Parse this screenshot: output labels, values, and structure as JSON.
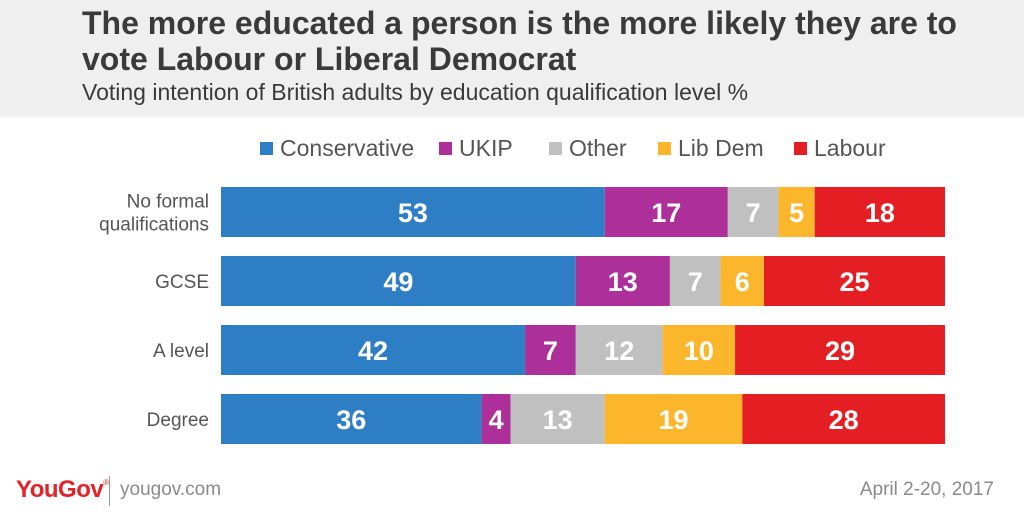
{
  "header": {
    "title": "The more educated a person is the more likely they are to vote Labour or Liberal Democrat",
    "subtitle": "Voting intention of British adults by education qualification level %"
  },
  "legend": [
    {
      "label": "Conservative",
      "color": "#2d7ec4"
    },
    {
      "label": "UKIP",
      "color": "#ad2f99"
    },
    {
      "label": "Other",
      "color": "#c0c0c0"
    },
    {
      "label": "Lib Dem",
      "color": "#fbb62c"
    },
    {
      "label": "Labour",
      "color": "#e41e23"
    }
  ],
  "chart_data": {
    "type": "bar",
    "orientation": "horizontal",
    "stacked": true,
    "title": "The more educated a person is the more likely they are to vote Labour or Liberal Democrat",
    "subtitle": "Voting intention of British adults by education qualification level %",
    "xlabel": "",
    "ylabel": "",
    "xlim": [
      0,
      100
    ],
    "categories": [
      "No formal qualifications",
      "GCSE",
      "A level",
      "Degree"
    ],
    "category_lines": [
      [
        "No formal",
        "qualifications"
      ],
      [
        "GCSE"
      ],
      [
        "A level"
      ],
      [
        "Degree"
      ]
    ],
    "series": [
      {
        "name": "Conservative",
        "color": "#2d7ec4",
        "label_color": "#ffffff",
        "values": [
          53,
          49,
          42,
          36
        ]
      },
      {
        "name": "UKIP",
        "color": "#ad2f99",
        "label_color": "#ffffff",
        "values": [
          17,
          13,
          7,
          4
        ]
      },
      {
        "name": "Other",
        "color": "#c0c0c0",
        "label_color": "#ffffff",
        "values": [
          7,
          7,
          12,
          13
        ]
      },
      {
        "name": "Lib Dem",
        "color": "#fbb62c",
        "label_color": "#ffffff",
        "values": [
          5,
          6,
          10,
          19
        ]
      },
      {
        "name": "Labour",
        "color": "#e41e23",
        "label_color": "#ffffff",
        "values": [
          18,
          25,
          29,
          28
        ]
      }
    ],
    "legend_position": "top",
    "grid": false
  },
  "footer": {
    "brand": "YouGov",
    "brand_mark": "®",
    "site": "yougov.com",
    "date": "April 2-20, 2017"
  }
}
